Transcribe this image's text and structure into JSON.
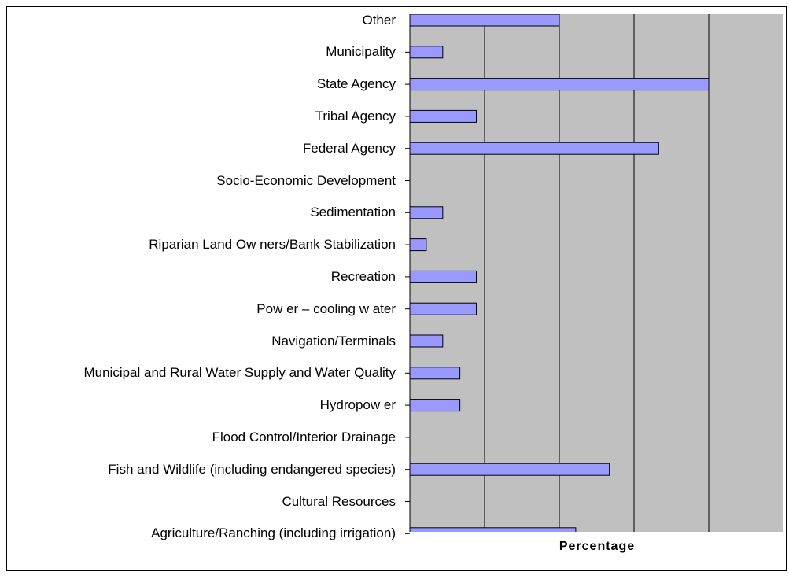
{
  "chart_data": {
    "type": "hbar",
    "categories": [
      "Other",
      "Municipality",
      "State Agency",
      "Tribal Agency",
      "Federal Agency",
      "Socio-Economic Development",
      "Sedimentation",
      "Riparian Land Ow ners/Bank Stabilization",
      "Recreation",
      "Pow er – cooling w ater",
      "Navigation/Terminals",
      "Municipal and Rural Water Supply and Water Quality",
      "Hydropow er",
      "Flood Control/Interior Drainage",
      "Fish and Wildlife (including endangered species)",
      "Cultural Resources",
      "Agriculture/Ranching (including irrigation)"
    ],
    "values": [
      20,
      4.4,
      40,
      8.9,
      33.3,
      0,
      4.4,
      2.2,
      8.9,
      8.9,
      4.4,
      6.7,
      6.7,
      0,
      26.7,
      0,
      22.2
    ],
    "color": "#9999ff",
    "xlabel": "Percentage",
    "xlim": [
      0,
      50
    ],
    "xticks": [
      10,
      20,
      30,
      40
    ],
    "grid": true
  }
}
